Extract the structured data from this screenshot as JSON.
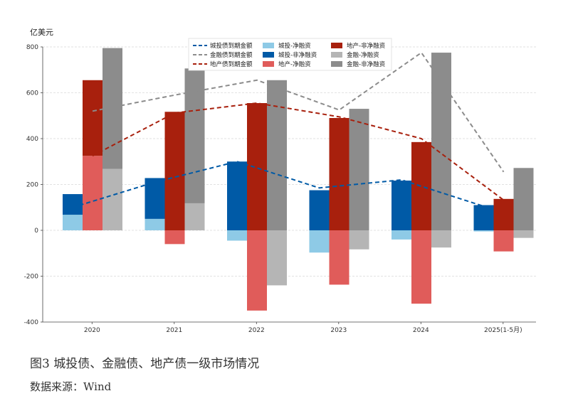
{
  "caption": "图3   城投债、金融债、地产债一级市场情况",
  "source": "数据来源：Wind",
  "chart_data": {
    "type": "bar",
    "unit_label": "亿美元",
    "categories": [
      "2020",
      "2021",
      "2022",
      "2023",
      "2024",
      "2025(1-5月)"
    ],
    "ylim": [
      -400,
      800
    ],
    "yticks": [
      -400,
      -200,
      0,
      200,
      400,
      600,
      800
    ],
    "grid": true,
    "legend_position": "top-center",
    "bar_groups": [
      {
        "name": "城投",
        "net_financing": {
          "name": "城投-净融资",
          "color": "#8ecae6",
          "values": [
            68,
            50,
            -45,
            -97,
            -40,
            -5
          ]
        },
        "non_net_financing": {
          "name": "城投-非净融资",
          "color": "#005aa6",
          "values": [
            90,
            178,
            300,
            175,
            217,
            110
          ]
        }
      },
      {
        "name": "地产",
        "net_financing": {
          "name": "地产-净融资",
          "color": "#e05c5a",
          "values": [
            325,
            -60,
            -350,
            -237,
            -320,
            -92
          ]
        },
        "non_net_financing": {
          "name": "地产-非净融资",
          "color": "#a8200d",
          "values": [
            330,
            517,
            555,
            490,
            385,
            137
          ]
        }
      },
      {
        "name": "金融",
        "net_financing": {
          "name": "金融-净融资",
          "color": "#b5b5b5",
          "values": [
            268,
            118,
            -240,
            -83,
            -75,
            -33
          ]
        },
        "non_net_financing": {
          "name": "金融-非净融资",
          "color": "#8c8c8c",
          "values": [
            527,
            588,
            655,
            530,
            775,
            272
          ]
        }
      }
    ],
    "lines": [
      {
        "name": "城投债到期金额",
        "color": "#005aa6",
        "values": [
          100,
          210,
          300,
          185,
          220,
          105
        ]
      },
      {
        "name": "金融债到期金额",
        "color": "#8c8c8c",
        "values": [
          520,
          590,
          655,
          525,
          775,
          255
        ]
      },
      {
        "name": "地产债到期金额",
        "color": "#a8200d",
        "values": [
          325,
          512,
          555,
          495,
          400,
          132
        ]
      }
    ]
  }
}
